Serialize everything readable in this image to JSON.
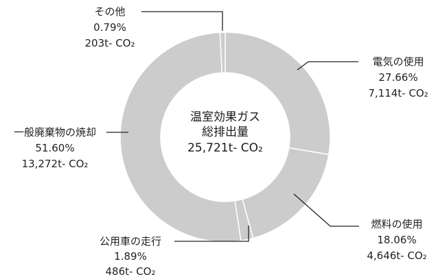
{
  "chart_data": {
    "type": "pie",
    "style": "donut",
    "center_label": [
      "温室効果ガス",
      "総排出量",
      "25,721t- CO₂"
    ],
    "start_angle_deg": 0,
    "direction": "clockwise",
    "segment_color": "#cccccc",
    "segment_border": "#ffffff",
    "slices": [
      {
        "name": "電気の使用",
        "percent": 27.66,
        "percent_label": "27.66%",
        "amount_label": "7,114t- CO₂"
      },
      {
        "name": "燃料の使用",
        "percent": 18.06,
        "percent_label": "18.06%",
        "amount_label": "4,646t- CO₂"
      },
      {
        "name": "公用車の走行",
        "percent": 1.89,
        "percent_label": "1.89%",
        "amount_label": "486t- CO₂"
      },
      {
        "name": "一般廃棄物の焼却",
        "percent": 51.6,
        "percent_label": "51.60%",
        "amount_label": "13,272t- CO₂"
      },
      {
        "name": "その他",
        "percent": 0.79,
        "percent_label": "0.79%",
        "amount_label": "203t- CO₂"
      }
    ]
  }
}
